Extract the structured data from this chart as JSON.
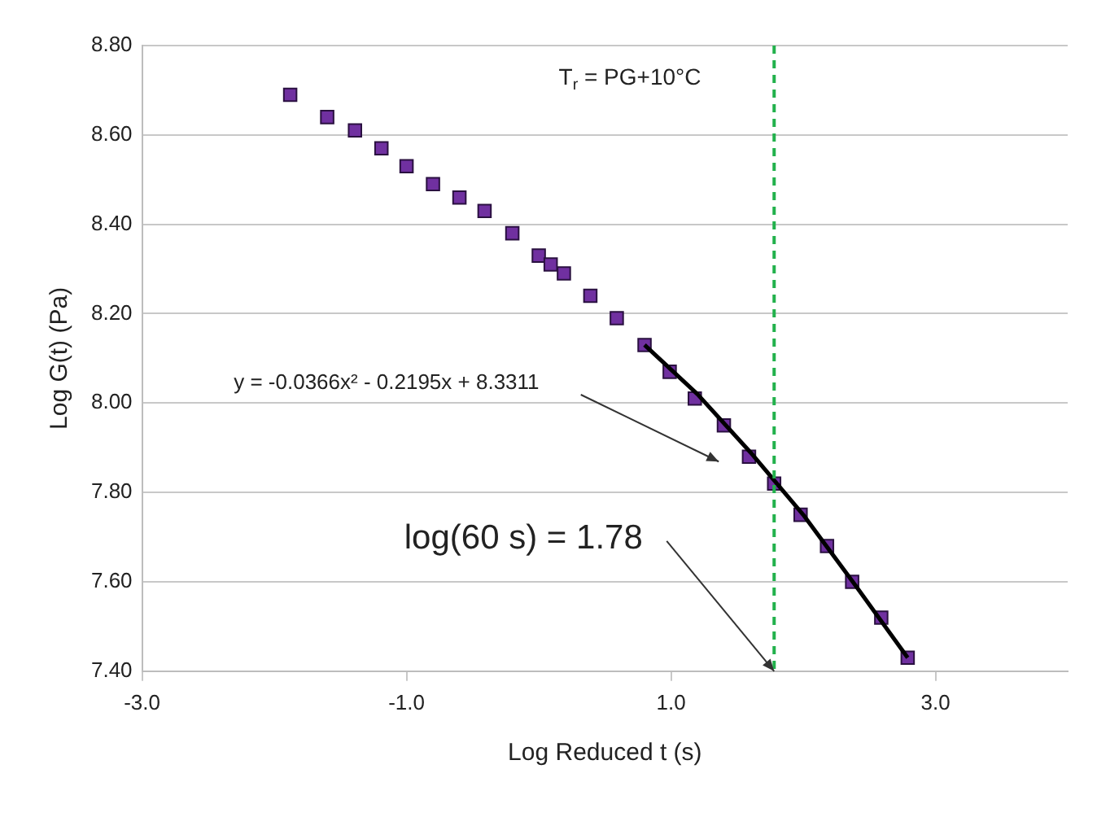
{
  "chart_data": {
    "type": "scatter",
    "xlabel": "Log Reduced t (s)",
    "ylabel": "Log G(t) (Pa)",
    "xlim": [
      -3,
      4
    ],
    "xticks": [
      {
        "value": -3,
        "label": "-3.0"
      },
      {
        "value": -1,
        "label": "-1.0"
      },
      {
        "value": 1,
        "label": "1.0"
      },
      {
        "value": 3,
        "label": "3.0"
      }
    ],
    "ylim": [
      7.4,
      8.8
    ],
    "yticks": [
      {
        "value": 7.4,
        "label": "7.40"
      },
      {
        "value": 7.6,
        "label": "7.60"
      },
      {
        "value": 7.8,
        "label": "7.80"
      },
      {
        "value": 8.0,
        "label": "8.00"
      },
      {
        "value": 8.2,
        "label": "8.20"
      },
      {
        "value": 8.4,
        "label": "8.40"
      },
      {
        "value": 8.6,
        "label": "8.60"
      },
      {
        "value": 8.8,
        "label": "8.80"
      }
    ],
    "grid": "y",
    "legend": false,
    "marker": "square",
    "series": [
      {
        "color": "#7030a0",
        "x": [
          -1.88,
          -1.6,
          -1.39,
          -1.19,
          -1.0,
          -0.8,
          -0.6,
          -0.41,
          -0.2,
          0.0,
          0.09,
          0.19,
          0.39,
          0.59,
          0.8,
          0.99,
          1.18,
          1.4,
          1.59,
          1.78,
          1.98,
          2.18,
          2.37,
          2.59,
          2.79
        ],
        "values": [
          8.69,
          8.64,
          8.61,
          8.57,
          8.53,
          8.49,
          8.46,
          8.43,
          8.38,
          8.33,
          8.31,
          8.29,
          8.24,
          8.19,
          8.13,
          8.07,
          8.01,
          7.95,
          7.88,
          7.82,
          7.75,
          7.68,
          7.6,
          7.52,
          7.43
        ]
      },
      {
        "type": "line",
        "color": "#000000",
        "marker": "none",
        "x": [
          0.8,
          1.2,
          1.6,
          2.0,
          2.4,
          2.79
        ],
        "values": [
          8.13,
          8.02,
          7.89,
          7.75,
          7.59,
          7.43
        ]
      }
    ],
    "ref_lines": [
      {
        "axis": "x",
        "value": 1.78,
        "color": "#22b14c",
        "line_style": "dashed"
      }
    ],
    "annotations": [
      "T$_{r}$ = PG+10°C",
      "y = -0.0366x² - 0.2195x + 8.3311",
      {
        "text": "log(60 s) = 1.78",
        "x": 1.78,
        "y": 7.4
      }
    ]
  }
}
